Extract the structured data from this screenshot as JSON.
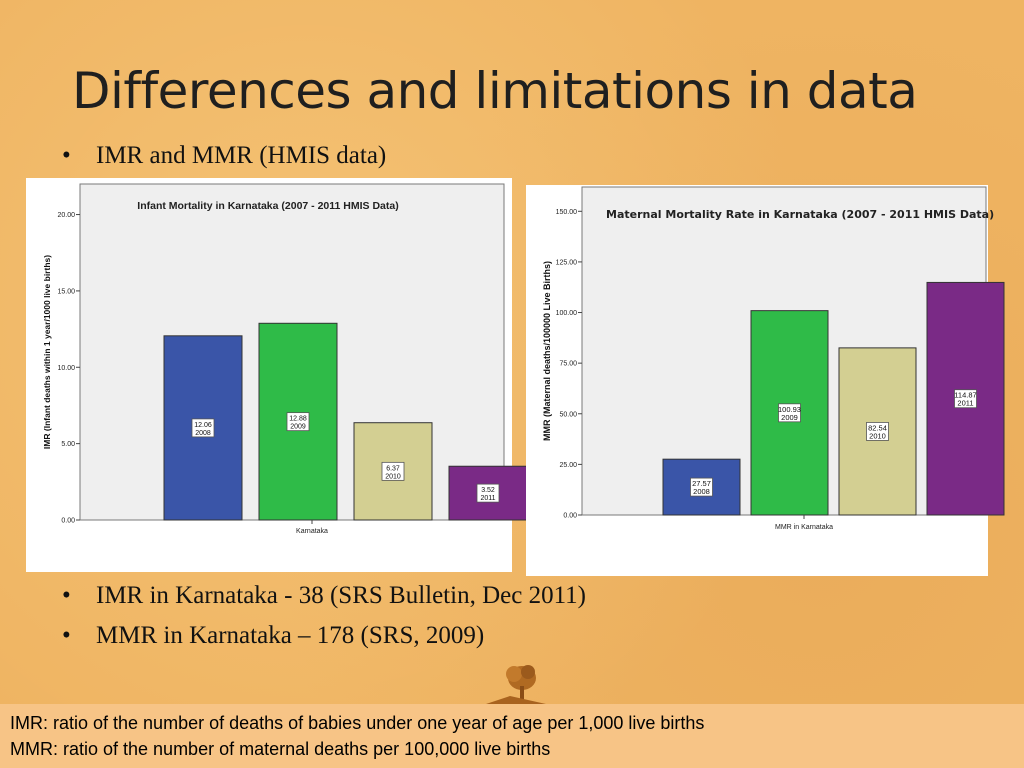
{
  "slide": {
    "title": "Differences and limitations in data",
    "bullet_1": "IMR and MMR (HMIS data)",
    "bullet_2": "IMR in Karnataka  - 38 (SRS Bulletin, Dec 2011)",
    "bullet_3": "MMR in Karnataka – 178 (SRS, 2009)",
    "bullet_symbol": "•",
    "footer_line_1": "IMR: ratio of the number of deaths of babies under one year of age per 1,000 live births",
    "footer_line_2": "MMR: ratio of the number of maternal deaths per 100,000 live births"
  },
  "chart_data": [
    {
      "type": "bar",
      "title": "Infant Mortality in Karnataka (2007 - 2011 HMIS Data)",
      "xlabel": "Karnataka",
      "ylabel": "IMR (Infant deaths within 1 year/1000 live births)",
      "ylim": [
        0,
        22
      ],
      "yticks": [
        "0.00",
        "5.00",
        "10.00",
        "15.00",
        "20.00"
      ],
      "ytick_values": [
        0,
        5,
        10,
        15,
        20
      ],
      "categories": [
        "2008",
        "2009",
        "2010",
        "2011"
      ],
      "values": [
        12.06,
        12.88,
        6.37,
        3.52
      ],
      "value_labels": [
        "12.06",
        "12.88",
        "6.37",
        "3.52"
      ],
      "colors": [
        "#3a55a8",
        "#2fbb48",
        "#d3cf92",
        "#7a2a86"
      ]
    },
    {
      "type": "bar",
      "title": "Maternal Mortality Rate in Karnataka (2007 - 2011 HMIS Data)",
      "xlabel": "MMR in Karnataka",
      "ylabel": "MMR (Maternal deaths/100000 Live Births)",
      "ylim": [
        0,
        162
      ],
      "yticks": [
        "0.00",
        "25.00",
        "50.00",
        "75.00",
        "100.00",
        "125.00",
        "150.00"
      ],
      "ytick_values": [
        0,
        25,
        50,
        75,
        100,
        125,
        150
      ],
      "categories": [
        "2008",
        "2009",
        "2010",
        "2011"
      ],
      "values": [
        27.57,
        100.93,
        82.54,
        114.87
      ],
      "value_labels": [
        "27.57",
        "100.93",
        "82.54",
        "114.87"
      ],
      "colors": [
        "#3a55a8",
        "#2fbb48",
        "#d3cf92",
        "#7a2a86"
      ]
    }
  ]
}
